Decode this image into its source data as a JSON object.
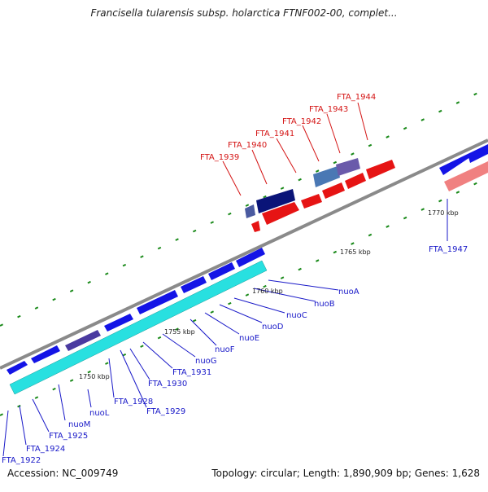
{
  "title": "Francisella tularensis subsp. holarctica FTNF002-00, complet...",
  "footer": {
    "accession": "Accession: NC_009749",
    "summary": "Topology: circular; Length: 1,890,909 bp; Genes: 1,628"
  },
  "colors": {
    "backbone": "#8a8a8a",
    "forward_gene": "#1414e6",
    "reverse_gene": "#e61414",
    "cds_cyan": "#28e0e0",
    "dark_navy": "#0a1478",
    "feature_blue": "#4a78b4",
    "ticks": "#1a8a1a",
    "label_blue": "#1818c8",
    "label_red": "#d41414"
  },
  "scale_labels": [
    "1750 kbp",
    "1755 kbp",
    "1760 kbp",
    "1765 kbp",
    "1770 kbp"
  ],
  "blue_labels": [
    "FTA_1922",
    "FTA_1924",
    "FTA_1925",
    "nuoM",
    "nuoL",
    "FTA_1928",
    "FTA_1929",
    "FTA_1930",
    "FTA_1931",
    "nuoG",
    "nuoF",
    "nuoE",
    "nuoD",
    "nuoC",
    "nuoB",
    "nuoA",
    "FTA_1947"
  ],
  "red_labels": [
    "FTA_1939",
    "FTA_1940",
    "FTA_1941",
    "FTA_1942",
    "FTA_1943",
    "FTA_1944"
  ]
}
